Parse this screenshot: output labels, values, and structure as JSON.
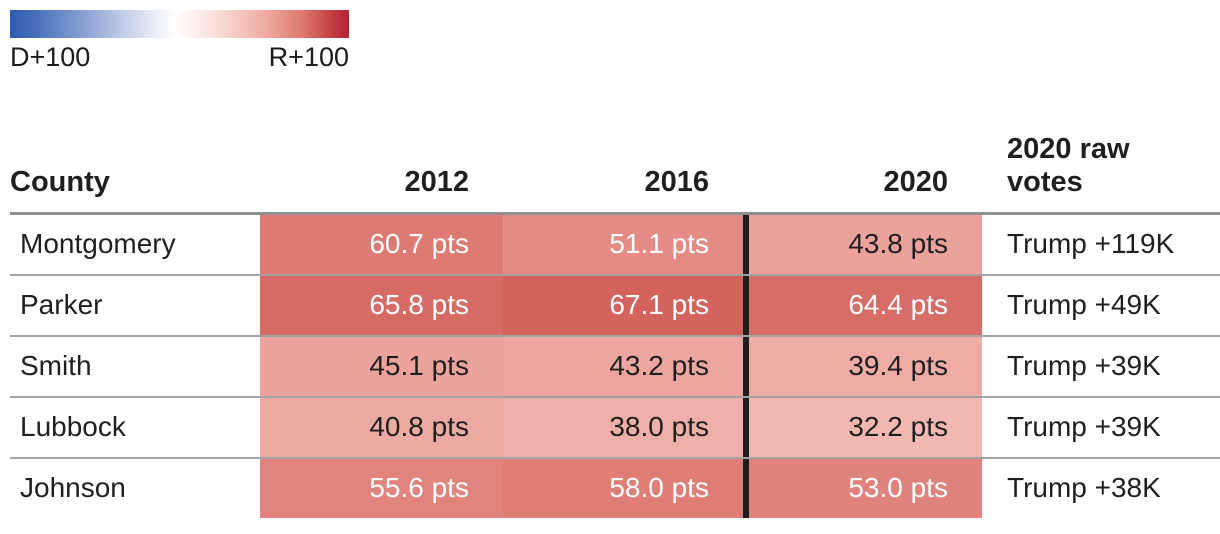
{
  "legend": {
    "left_label": "D+100",
    "right_label": "R+100",
    "left_color": "#2e5bb0",
    "center_color": "#ffffff",
    "right_color": "#b52231"
  },
  "table": {
    "headers": {
      "county": "County",
      "c2012": "2012",
      "c2016": "2016",
      "c2020": "2020",
      "raw": "2020 raw votes"
    },
    "rows": [
      {
        "county": "Montgomery",
        "cells": [
          {
            "text": "60.7 pts",
            "bg": "#dd7a73",
            "fg": "#ffffff"
          },
          {
            "text": "51.1 pts",
            "bg": "#e38b84",
            "fg": "#ffffff"
          },
          {
            "text": "43.8 pts",
            "bg": "#eba29b",
            "fg": "#1f1f1f"
          }
        ],
        "raw": "Trump +119K"
      },
      {
        "county": "Parker",
        "cells": [
          {
            "text": "65.8 pts",
            "bg": "#d66a64",
            "fg": "#ffffff"
          },
          {
            "text": "67.1 pts",
            "bg": "#d4635e",
            "fg": "#ffffff"
          },
          {
            "text": "64.4 pts",
            "bg": "#d76d67",
            "fg": "#ffffff"
          }
        ],
        "raw": "Trump +49K"
      },
      {
        "county": "Smith",
        "cells": [
          {
            "text": "45.1 pts",
            "bg": "#eba39c",
            "fg": "#1f1f1f"
          },
          {
            "text": "43.2 pts",
            "bg": "#eca69f",
            "fg": "#1f1f1f"
          },
          {
            "text": "39.4 pts",
            "bg": "#eeaca5",
            "fg": "#1f1f1f"
          }
        ],
        "raw": "Trump +39K"
      },
      {
        "county": "Lubbock",
        "cells": [
          {
            "text": "40.8 pts",
            "bg": "#edaaa3",
            "fg": "#1f1f1f"
          },
          {
            "text": "38.0 pts",
            "bg": "#eeafa8",
            "fg": "#1f1f1f"
          },
          {
            "text": "32.2 pts",
            "bg": "#f1b7b0",
            "fg": "#1f1f1f"
          }
        ],
        "raw": "Trump +39K"
      },
      {
        "county": "Johnson",
        "cells": [
          {
            "text": "55.6 pts",
            "bg": "#e0847d",
            "fg": "#ffffff"
          },
          {
            "text": "58.0 pts",
            "bg": "#de7e77",
            "fg": "#ffffff"
          },
          {
            "text": "53.0 pts",
            "bg": "#e1837d",
            "fg": "#ffffff"
          }
        ],
        "raw": "Trump +38K"
      }
    ]
  },
  "chart_data": {
    "type": "heatmap",
    "title": "",
    "columns": [
      "County",
      "2012",
      "2016",
      "2020",
      "2020 raw votes"
    ],
    "categories": [
      "Montgomery",
      "Parker",
      "Smith",
      "Lubbock",
      "Johnson"
    ],
    "series": [
      {
        "name": "2012",
        "values": [
          60.7,
          65.8,
          45.1,
          40.8,
          55.6
        ]
      },
      {
        "name": "2016",
        "values": [
          51.1,
          67.1,
          43.2,
          38.0,
          58.0
        ]
      },
      {
        "name": "2020",
        "values": [
          43.8,
          64.4,
          39.4,
          32.2,
          53.0
        ]
      }
    ],
    "raw_votes_2020": [
      "Trump +119K",
      "Trump +49K",
      "Trump +39K",
      "Trump +39K",
      "Trump +38K"
    ],
    "units": "pts (Republican margin)",
    "legend": {
      "min_label": "D+100",
      "max_label": "R+100",
      "scale": "diverging blue-white-red",
      "range": [
        -100,
        100
      ]
    }
  },
  "colors": {
    "header_border": "#8f8f8f",
    "row_border": "#a3a3a3",
    "year_divider": "#1e1e1e"
  }
}
